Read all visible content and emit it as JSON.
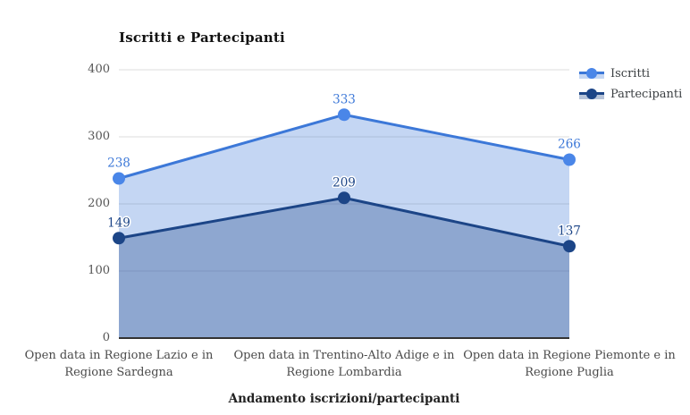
{
  "chart_data": {
    "type": "area",
    "title": "Iscritti e Partecipanti",
    "xlabel": "Andamento iscrizioni/partecipanti",
    "ylabel": "",
    "categories": [
      "Open data in Regione Lazio e in Regione Sardegna",
      "Open data in Trentino-Alto Adige e in Regione Lombardia",
      "Open data in Regione Piemonte e in Regione Puglia"
    ],
    "series": [
      {
        "name": "Iscritti",
        "values": [
          238,
          333,
          266
        ],
        "line_color": "#3c78d8",
        "marker_color": "#4a86e8",
        "label_color": "#3c78d8",
        "fill_color": "rgba(60,120,216,0.30)"
      },
      {
        "name": "Partecipanti",
        "values": [
          149,
          209,
          137
        ],
        "line_color": "#1c4587",
        "marker_color": "#1c4587",
        "label_color": "#1c4587",
        "fill_color": "rgba(28,69,135,0.32)"
      }
    ],
    "ylim": [
      0,
      400
    ],
    "yticks": [
      0,
      100,
      200,
      300,
      400
    ],
    "grid": true,
    "legend_position": "right",
    "grid_color": "#dcdcdc",
    "baseline_color": "#333333"
  }
}
